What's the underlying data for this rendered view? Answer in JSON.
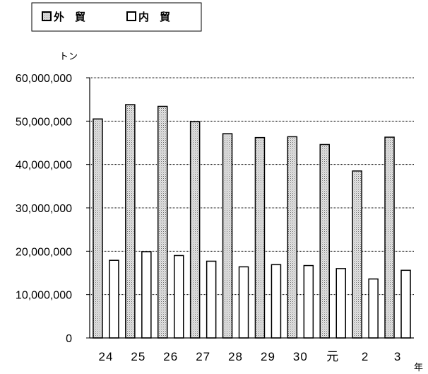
{
  "chart_data": {
    "type": "bar",
    "categories": [
      "24",
      "25",
      "26",
      "27",
      "28",
      "29",
      "30",
      "元",
      "2",
      "3"
    ],
    "series": [
      {
        "name": "外　貿",
        "values": [
          50500000,
          53800000,
          53400000,
          49900000,
          47100000,
          46200000,
          46400000,
          44600000,
          38500000,
          46300000
        ],
        "fill": "#c8c8c8"
      },
      {
        "name": "内　貿",
        "values": [
          17900000,
          19900000,
          19000000,
          17700000,
          16400000,
          16900000,
          16700000,
          16000000,
          13600000,
          15600000
        ],
        "fill": "#ffffff"
      }
    ],
    "ylim": [
      0,
      60000000
    ],
    "yticks": [
      "0",
      "10,000,000",
      "20,000,000",
      "30,000,000",
      "40,000,000",
      "50,000,000",
      "60,000,000"
    ],
    "ylabel": "トン",
    "xlabel": "年",
    "grid": true,
    "legend_position": "top-left"
  }
}
